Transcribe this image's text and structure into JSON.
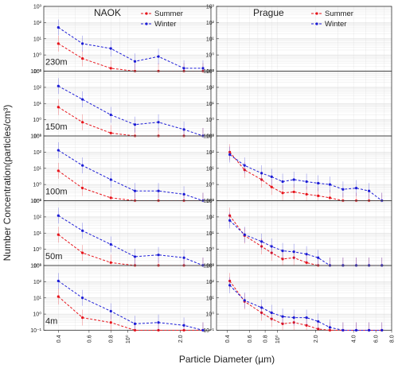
{
  "figure": {
    "xlabel": "Particle Diameter (µm)",
    "ylabel": "Number Concentration(particles/cm³)",
    "column_titles": [
      "NAOK",
      "Prague"
    ],
    "row_labels": [
      "230m",
      "150m",
      "100m",
      "50m",
      "4m"
    ],
    "legend": [
      "Summer",
      "Winter"
    ]
  },
  "colors": {
    "Summer": "#e8141b",
    "Winter": "#1c1cd6",
    "grid": "#d9d9d9"
  },
  "axes": {
    "ylim": [
      0.1,
      1000
    ],
    "y_ticks": [
      0.1,
      1,
      10,
      100,
      1000
    ],
    "y_tick_labels": [
      "10⁻¹",
      "10⁰",
      "10¹",
      "10²",
      "10³"
    ],
    "naok_xlim": [
      0.33,
      3.0
    ],
    "naok_x_ticks": [
      0.4,
      0.6,
      0.8,
      1.0,
      2.0
    ],
    "naok_x_tick_labels": [
      "0.4",
      "0.6",
      "0.8",
      "10⁰",
      "2.0"
    ],
    "prague_xlim": [
      0.33,
      8.0
    ],
    "prague_x_ticks": [
      0.4,
      0.6,
      0.8,
      1.0,
      2.0,
      4.0,
      6.0,
      8.0
    ],
    "prague_x_tick_labels": [
      "0.4",
      "0.6",
      "0.8",
      "10⁰",
      "2.0",
      "4.0",
      "6.0",
      "8.0"
    ],
    "x_scale": "log",
    "y_scale": "log",
    "grid": true
  },
  "chart_data": [
    {
      "type": "line",
      "panel": "NAOK 230m",
      "x": [
        0.4,
        0.55,
        0.8,
        1.1,
        1.5,
        2.1,
        2.7
      ],
      "series": [
        {
          "name": "Summer",
          "values": [
            5,
            0.6,
            0.15,
            0.1,
            0.1,
            0.1,
            0.1
          ]
        },
        {
          "name": "Winter",
          "values": [
            50,
            5,
            2.5,
            0.4,
            0.8,
            0.15,
            0.15
          ]
        }
      ]
    },
    {
      "type": "line",
      "panel": "NAOK 150m",
      "x": [
        0.4,
        0.55,
        0.8,
        1.1,
        1.5,
        2.1,
        2.7
      ],
      "series": [
        {
          "name": "Summer",
          "values": [
            6,
            0.7,
            0.15,
            0.1,
            0.1,
            0.1,
            0.1
          ]
        },
        {
          "name": "Winter",
          "values": [
            120,
            18,
            2,
            0.5,
            0.7,
            0.25,
            0.1
          ]
        }
      ]
    },
    {
      "type": "line",
      "panel": "NAOK 100m",
      "x": [
        0.4,
        0.55,
        0.8,
        1.1,
        1.5,
        2.1,
        2.7
      ],
      "series": [
        {
          "name": "Summer",
          "values": [
            7,
            0.6,
            0.15,
            0.1,
            0.1,
            0.1,
            0.1
          ]
        },
        {
          "name": "Winter",
          "values": [
            130,
            15,
            2,
            0.4,
            0.4,
            0.25,
            0.1
          ]
        }
      ]
    },
    {
      "type": "line",
      "panel": "NAOK 50m",
      "x": [
        0.4,
        0.55,
        0.8,
        1.1,
        1.5,
        2.1,
        2.7
      ],
      "series": [
        {
          "name": "Summer",
          "values": [
            8,
            0.6,
            0.15,
            0.1,
            0.1,
            0.1,
            0.1
          ]
        },
        {
          "name": "Winter",
          "values": [
            120,
            14,
            2,
            0.35,
            0.45,
            0.3,
            0.1
          ]
        }
      ]
    },
    {
      "type": "line",
      "panel": "NAOK 4m",
      "x": [
        0.4,
        0.55,
        0.8,
        1.1,
        1.5,
        2.1,
        2.7
      ],
      "series": [
        {
          "name": "Summer",
          "values": [
            12,
            0.6,
            0.3,
            0.1,
            0.1,
            0.1,
            0.1
          ]
        },
        {
          "name": "Winter",
          "values": [
            110,
            10,
            1.5,
            0.25,
            0.3,
            0.2,
            0.1
          ]
        }
      ]
    },
    {
      "type": "line",
      "panel": "Prague 230m",
      "x": [],
      "series": [
        {
          "name": "Summer",
          "values": []
        },
        {
          "name": "Winter",
          "values": []
        }
      ]
    },
    {
      "type": "line",
      "panel": "Prague 150m",
      "x": [],
      "series": [
        {
          "name": "Summer",
          "values": []
        },
        {
          "name": "Winter",
          "values": []
        }
      ]
    },
    {
      "type": "line",
      "panel": "Prague 100m",
      "x": [
        0.42,
        0.55,
        0.75,
        0.9,
        1.1,
        1.35,
        1.7,
        2.1,
        2.6,
        3.3,
        4.2,
        5.3,
        6.7
      ],
      "series": [
        {
          "name": "Summer",
          "values": [
            100,
            8,
            2,
            0.7,
            0.3,
            0.35,
            0.25,
            0.2,
            0.15,
            0.1,
            0.1,
            0.1,
            0.1
          ]
        },
        {
          "name": "Winter",
          "values": [
            70,
            15,
            5,
            3,
            1.5,
            2,
            1.5,
            1.2,
            1,
            0.5,
            0.6,
            0.4,
            0.1
          ]
        }
      ]
    },
    {
      "type": "line",
      "panel": "Prague 50m",
      "x": [
        0.42,
        0.55,
        0.75,
        0.9,
        1.1,
        1.35,
        1.7,
        2.1,
        2.6,
        3.3,
        4.2,
        5.3,
        6.7
      ],
      "series": [
        {
          "name": "Summer",
          "values": [
            120,
            7,
            1.5,
            0.6,
            0.25,
            0.3,
            0.15,
            0.1,
            0.1,
            0.1,
            0.1,
            0.1,
            0.1
          ]
        },
        {
          "name": "Winter",
          "values": [
            60,
            8,
            3,
            1.5,
            0.8,
            0.7,
            0.5,
            0.3,
            0.1,
            0.1,
            0.1,
            0.1,
            0.1
          ]
        }
      ]
    },
    {
      "type": "line",
      "panel": "Prague 4m",
      "x": [
        0.42,
        0.55,
        0.75,
        0.9,
        1.1,
        1.35,
        1.7,
        2.1,
        2.6,
        3.3,
        4.2,
        5.3,
        6.7
      ],
      "series": [
        {
          "name": "Summer",
          "values": [
            110,
            6,
            1.2,
            0.5,
            0.25,
            0.3,
            0.2,
            0.12,
            0.1,
            0.1,
            0.1,
            0.1,
            0.1
          ]
        },
        {
          "name": "Winter",
          "values": [
            60,
            7,
            2.5,
            1.2,
            0.7,
            0.6,
            0.6,
            0.35,
            0.15,
            0.1,
            0.1,
            0.1,
            0.1
          ]
        }
      ]
    }
  ]
}
